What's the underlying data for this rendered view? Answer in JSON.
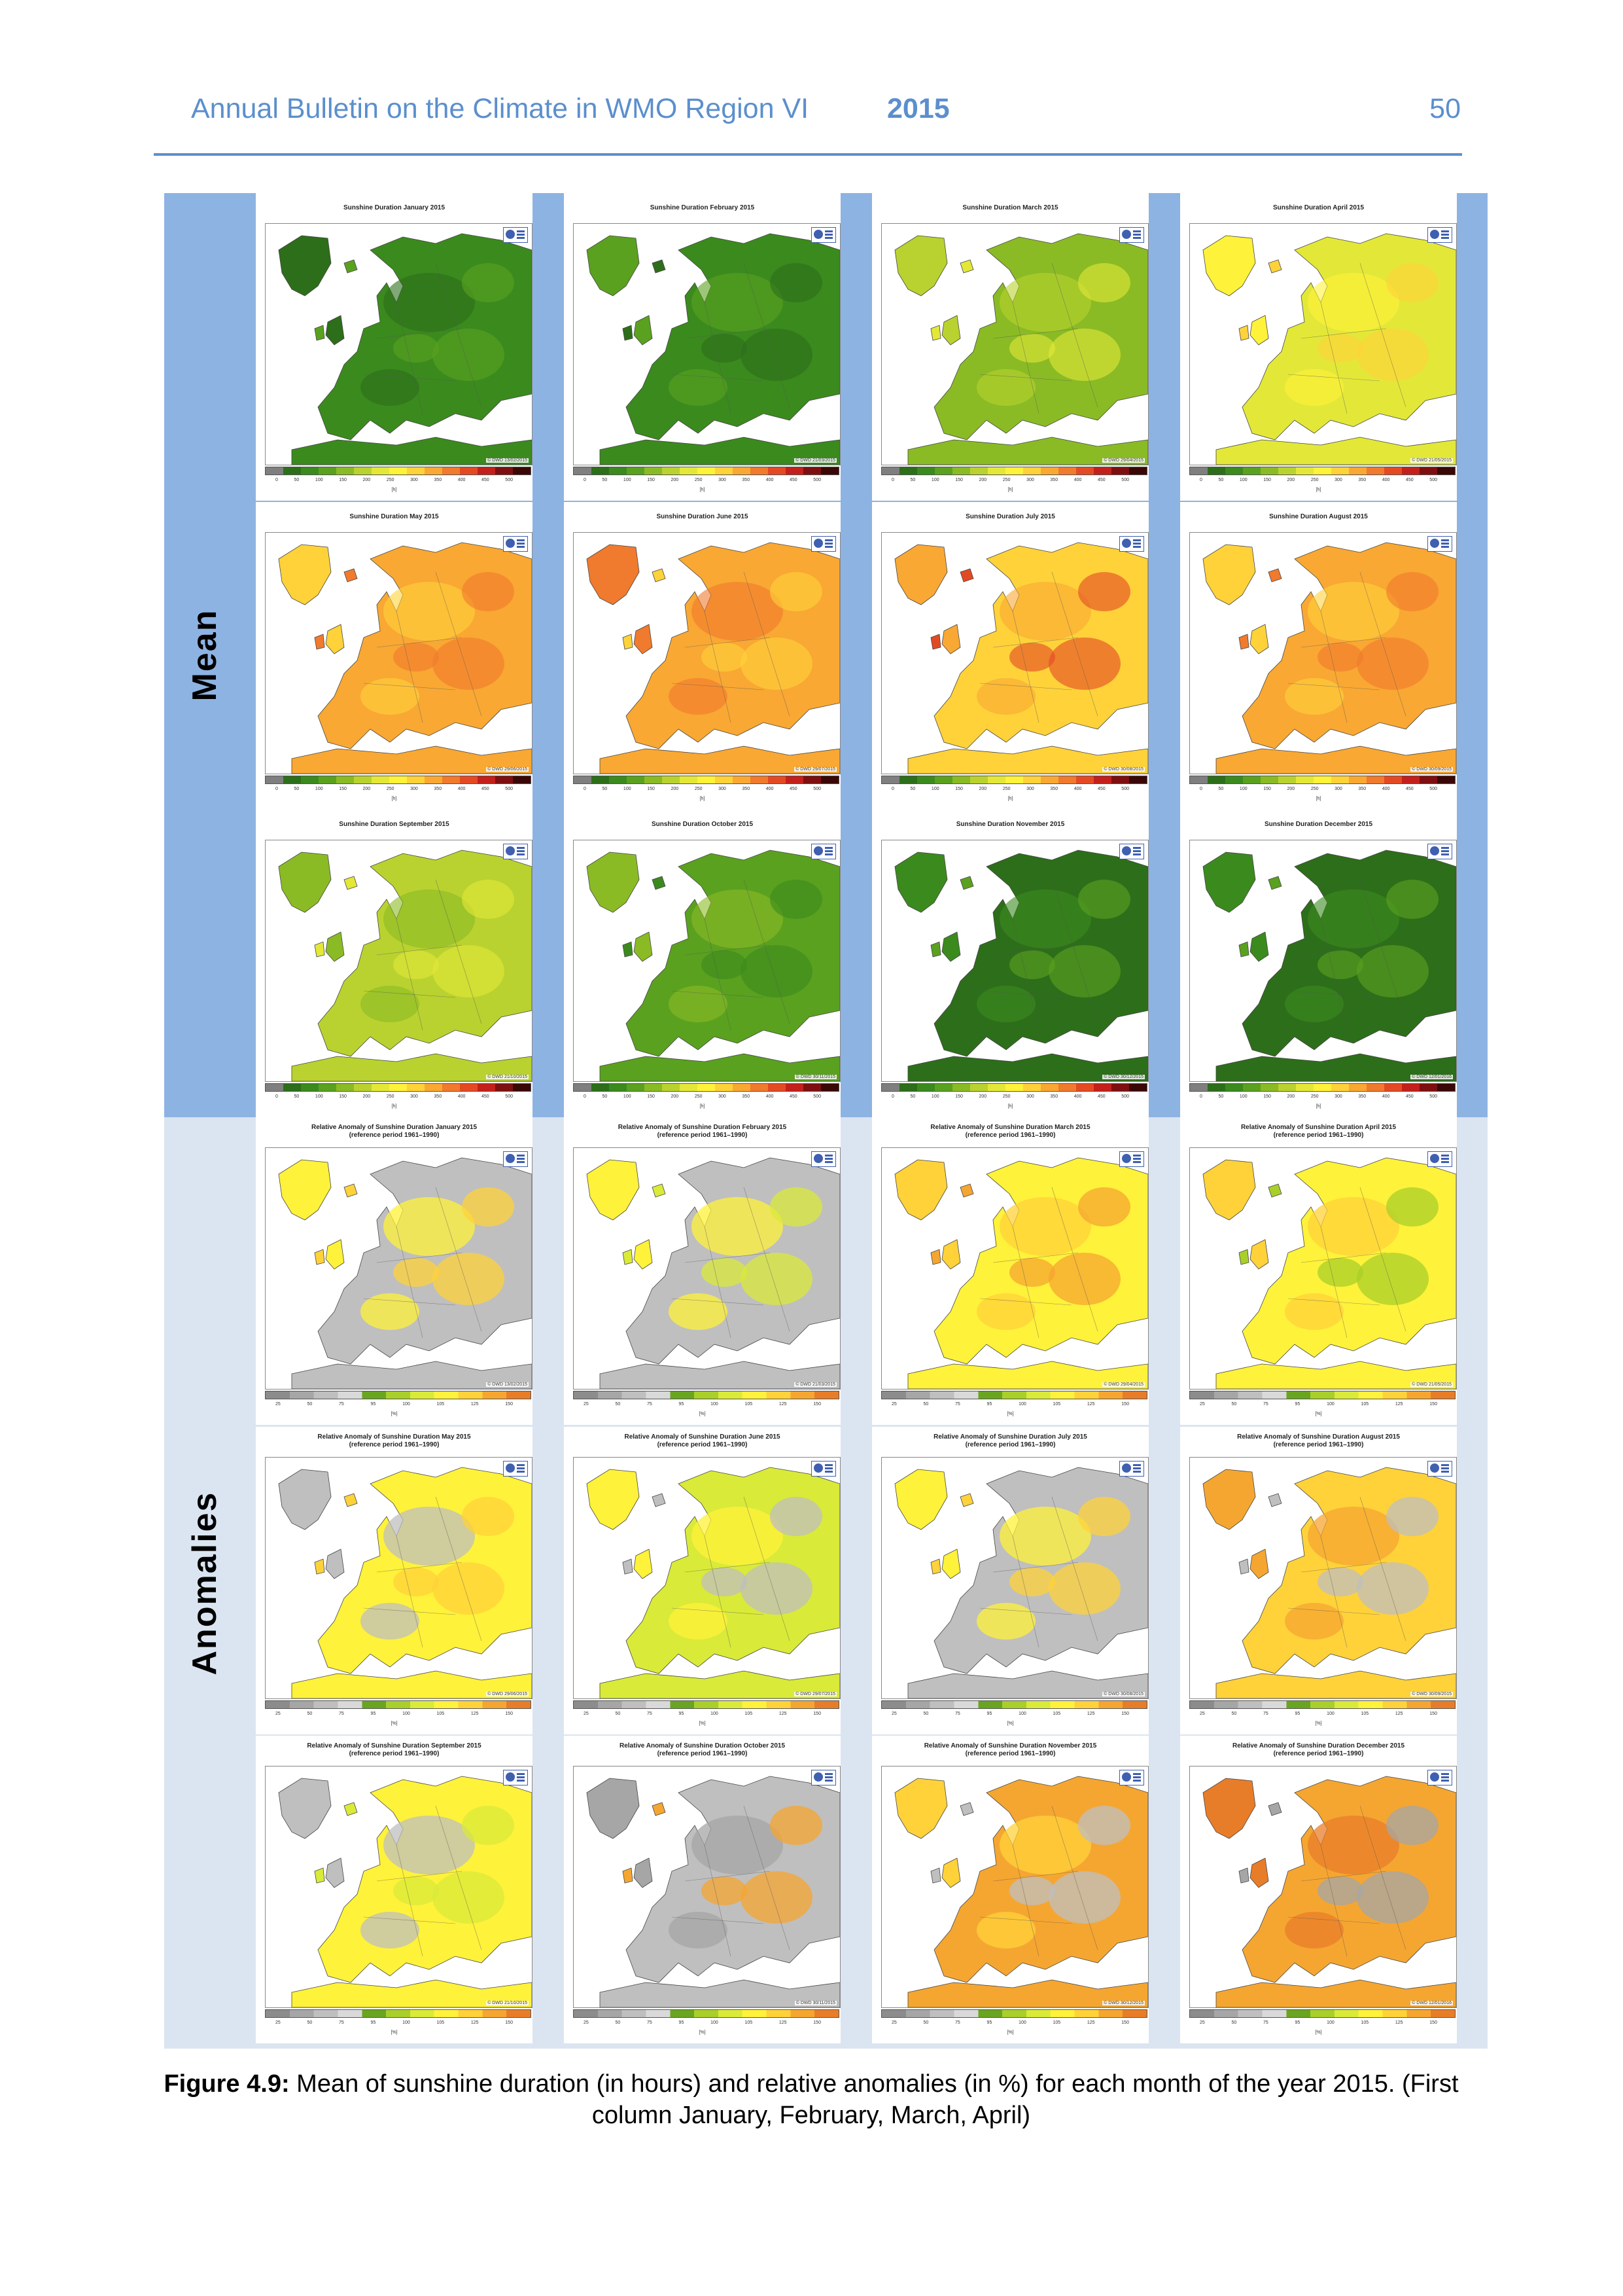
{
  "header": {
    "title": "Annual Bulletin on the Climate in WMO Region VI",
    "year": "2015",
    "page_number": "50"
  },
  "sections": {
    "mean_label": "Mean",
    "anomalies_label": "Anomalies"
  },
  "scales": {
    "mean": {
      "ticks": [
        "0",
        "50",
        "100",
        "150",
        "200",
        "250",
        "300",
        "350",
        "400",
        "450",
        "500"
      ],
      "unit": "[h]",
      "colors": [
        "#7f7f7f",
        "#2d6e1a",
        "#3b8a1e",
        "#5aa11f",
        "#8abb25",
        "#b9d22f",
        "#e3e838",
        "#fff23a",
        "#ffd23a",
        "#f9a833",
        "#f07a2d",
        "#e34a24",
        "#c3201b",
        "#7e0f10",
        "#3a0707"
      ]
    },
    "anomaly": {
      "ticks": [
        "25",
        "50",
        "75",
        "95",
        "100",
        "105",
        "125",
        "150"
      ],
      "unit": "[%]",
      "colors": [
        "#8c8c8c",
        "#a6a6a6",
        "#bfbfbf",
        "#d9d9d9",
        "#6aa521",
        "#a9cf2a",
        "#d9ea39",
        "#fff23a",
        "#ffd23a",
        "#f5a631",
        "#e87d29"
      ]
    }
  },
  "mean_panels": [
    {
      "title": "Sunshine Duration January 2015",
      "copyright": "© DWD 13/02/2015",
      "palette": [
        "#3b8a1e",
        "#2d6e1a",
        "#5aa11f"
      ]
    },
    {
      "title": "Sunshine Duration February 2015",
      "copyright": "© DWD 21/03/2015",
      "palette": [
        "#3b8a1e",
        "#5aa11f",
        "#2d6e1a"
      ]
    },
    {
      "title": "Sunshine Duration March 2015",
      "copyright": "© DWD 29/04/2015",
      "palette": [
        "#8abb25",
        "#b9d22f",
        "#e3e838"
      ]
    },
    {
      "title": "Sunshine Duration April 2015",
      "copyright": "© DWD 21/05/2015",
      "palette": [
        "#e3e838",
        "#fff23a",
        "#ffd23a"
      ]
    },
    {
      "title": "Sunshine Duration May 2015",
      "copyright": "© DWD 29/06/2015",
      "palette": [
        "#f9a833",
        "#ffd23a",
        "#f07a2d"
      ]
    },
    {
      "title": "Sunshine Duration June 2015",
      "copyright": "© DWD 29/07/2015",
      "palette": [
        "#f9a833",
        "#f07a2d",
        "#ffd23a"
      ]
    },
    {
      "title": "Sunshine Duration July 2015",
      "copyright": "© DWD 30/08/2015",
      "palette": [
        "#ffd23a",
        "#f9a833",
        "#e34a24"
      ]
    },
    {
      "title": "Sunshine Duration August 2015",
      "copyright": "© DWD 30/09/2015",
      "palette": [
        "#f9a833",
        "#ffd23a",
        "#f07a2d"
      ]
    },
    {
      "title": "Sunshine Duration September 2015",
      "copyright": "© DWD 21/10/2015",
      "palette": [
        "#b9d22f",
        "#8abb25",
        "#e3e838"
      ]
    },
    {
      "title": "Sunshine Duration October 2015",
      "copyright": "© DWD 30/11/2015",
      "palette": [
        "#5aa11f",
        "#8abb25",
        "#3b8a1e"
      ]
    },
    {
      "title": "Sunshine Duration November 2015",
      "copyright": "© DWD 30/12/2015",
      "palette": [
        "#2d6e1a",
        "#3b8a1e",
        "#5aa11f"
      ]
    },
    {
      "title": "Sunshine Duration December 2015",
      "copyright": "© DWD 12/01/2016",
      "palette": [
        "#2d6e1a",
        "#3b8a1e",
        "#5aa11f"
      ]
    }
  ],
  "anomaly_panels": [
    {
      "title": "Relative Anomaly of Sunshine Duration January 2015",
      "subtitle": "(reference period 1961–1990)",
      "copyright": "© DWD 13/02/2015",
      "palette": [
        "#bfbfbf",
        "#fff23a",
        "#ffd23a"
      ]
    },
    {
      "title": "Relative Anomaly of Sunshine Duration February 2015",
      "subtitle": "(reference period 1961–1990)",
      "copyright": "© DWD 21/03/2015",
      "palette": [
        "#bfbfbf",
        "#fff23a",
        "#d9ea39"
      ]
    },
    {
      "title": "Relative Anomaly of Sunshine Duration March 2015",
      "subtitle": "(reference period 1961–1990)",
      "copyright": "© DWD 29/04/2015",
      "palette": [
        "#fff23a",
        "#ffd23a",
        "#f5a631"
      ]
    },
    {
      "title": "Relative Anomaly of Sunshine Duration April 2015",
      "subtitle": "(reference period 1961–1990)",
      "copyright": "© DWD 21/05/2015",
      "palette": [
        "#fff23a",
        "#ffd23a",
        "#a9cf2a"
      ]
    },
    {
      "title": "Relative Anomaly of Sunshine Duration May 2015",
      "subtitle": "(reference period 1961–1990)",
      "copyright": "© DWD 29/06/2015",
      "palette": [
        "#fff23a",
        "#bfbfbf",
        "#ffd23a"
      ]
    },
    {
      "title": "Relative Anomaly of Sunshine Duration June 2015",
      "subtitle": "(reference period 1961–1990)",
      "copyright": "© DWD 29/07/2015",
      "palette": [
        "#d9ea39",
        "#fff23a",
        "#bfbfbf"
      ]
    },
    {
      "title": "Relative Anomaly of Sunshine Duration July 2015",
      "subtitle": "(reference period 1961–1990)",
      "copyright": "© DWD 30/08/2015",
      "palette": [
        "#bfbfbf",
        "#fff23a",
        "#ffd23a"
      ]
    },
    {
      "title": "Relative Anomaly of Sunshine Duration August 2015",
      "subtitle": "(reference period 1961–1990)",
      "copyright": "© DWD 30/09/2015",
      "palette": [
        "#ffd23a",
        "#f5a631",
        "#bfbfbf"
      ]
    },
    {
      "title": "Relative Anomaly of Sunshine Duration September 2015",
      "subtitle": "(reference period 1961–1990)",
      "copyright": "© DWD 21/10/2015",
      "palette": [
        "#fff23a",
        "#bfbfbf",
        "#d9ea39"
      ]
    },
    {
      "title": "Relative Anomaly of Sunshine Duration October 2015",
      "subtitle": "(reference period 1961–1990)",
      "copyright": "© DWD 30/11/2015",
      "palette": [
        "#bfbfbf",
        "#a6a6a6",
        "#f5a631"
      ]
    },
    {
      "title": "Relative Anomaly of Sunshine Duration November 2015",
      "subtitle": "(reference period 1961–1990)",
      "copyright": "© DWD 30/12/2015",
      "palette": [
        "#f5a631",
        "#ffd23a",
        "#bfbfbf"
      ]
    },
    {
      "title": "Relative Anomaly of Sunshine Duration December 2015",
      "subtitle": "(reference period 1961–1990)",
      "copyright": "© DWD 12/01/2016",
      "palette": [
        "#f5a631",
        "#e87d29",
        "#a6a6a6"
      ]
    }
  ],
  "caption": {
    "label": "Figure 4.9:",
    "text": "Mean of sunshine duration (in hours) and relative anomalies (in %) for each month of the year 2015. (First column January, February, March, April)"
  }
}
